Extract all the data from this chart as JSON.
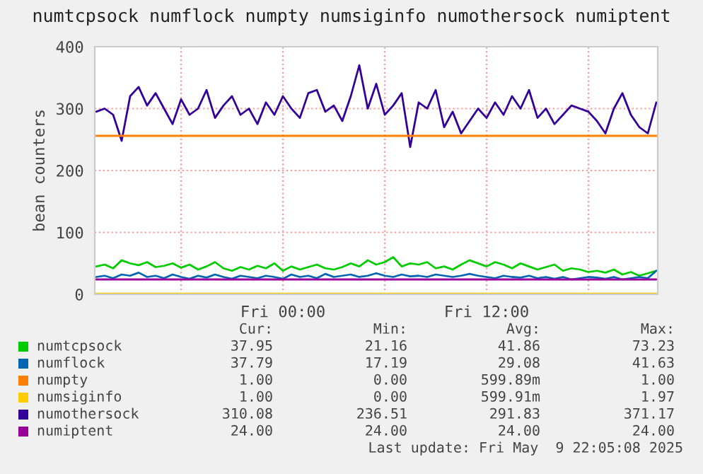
{
  "chart_data": {
    "type": "line",
    "title": "numtcpsock numflock numpty numsiginfo numothersock numiptent",
    "ylabel": "bean counters",
    "x": [
      "2025-05-08T13:00",
      "2025-05-08T13:30",
      "2025-05-08T14:00",
      "2025-05-08T14:30",
      "2025-05-08T15:00",
      "2025-05-08T15:30",
      "2025-05-08T16:00",
      "2025-05-08T16:30",
      "2025-05-08T17:00",
      "2025-05-08T17:30",
      "2025-05-08T18:00",
      "2025-05-08T18:30",
      "2025-05-08T19:00",
      "2025-05-08T19:30",
      "2025-05-08T20:00",
      "2025-05-08T20:30",
      "2025-05-08T21:00",
      "2025-05-08T21:30",
      "2025-05-08T22:00",
      "2025-05-08T22:30",
      "2025-05-08T23:00",
      "2025-05-08T23:30",
      "2025-05-09T00:00",
      "2025-05-09T00:30",
      "2025-05-09T01:00",
      "2025-05-09T01:30",
      "2025-05-09T02:00",
      "2025-05-09T02:30",
      "2025-05-09T03:00",
      "2025-05-09T03:30",
      "2025-05-09T04:00",
      "2025-05-09T04:30",
      "2025-05-09T05:00",
      "2025-05-09T05:30",
      "2025-05-09T06:00",
      "2025-05-09T06:30",
      "2025-05-09T07:00",
      "2025-05-09T07:30",
      "2025-05-09T08:00",
      "2025-05-09T08:30",
      "2025-05-09T09:00",
      "2025-05-09T09:30",
      "2025-05-09T10:00",
      "2025-05-09T10:30",
      "2025-05-09T11:00",
      "2025-05-09T11:30",
      "2025-05-09T12:00",
      "2025-05-09T12:30",
      "2025-05-09T13:00",
      "2025-05-09T13:30",
      "2025-05-09T14:00",
      "2025-05-09T14:30",
      "2025-05-09T15:00",
      "2025-05-09T15:30",
      "2025-05-09T16:00",
      "2025-05-09T16:30",
      "2025-05-09T17:00",
      "2025-05-09T17:30",
      "2025-05-09T18:00",
      "2025-05-09T18:30",
      "2025-05-09T19:00",
      "2025-05-09T19:30",
      "2025-05-09T20:00",
      "2025-05-09T20:30",
      "2025-05-09T21:00",
      "2025-05-09T21:30",
      "2025-05-09T22:00"
    ],
    "series": [
      {
        "name": "numtcpsock",
        "color": "#00cc00",
        "values": [
          45,
          48,
          42,
          55,
          50,
          47,
          52,
          44,
          46,
          50,
          43,
          48,
          40,
          45,
          52,
          42,
          38,
          44,
          40,
          46,
          42,
          50,
          38,
          45,
          40,
          44,
          48,
          42,
          40,
          44,
          50,
          45,
          55,
          48,
          52,
          60,
          45,
          50,
          48,
          52,
          42,
          45,
          40,
          48,
          55,
          50,
          45,
          52,
          48,
          42,
          50,
          45,
          40,
          44,
          48,
          38,
          42,
          40,
          36,
          38,
          35,
          40,
          32,
          36,
          30,
          34,
          38
        ]
      },
      {
        "name": "numflock",
        "color": "#0066b3",
        "values": [
          28,
          30,
          26,
          32,
          30,
          35,
          28,
          30,
          26,
          32,
          28,
          25,
          30,
          27,
          32,
          28,
          25,
          30,
          28,
          26,
          30,
          28,
          25,
          32,
          28,
          30,
          26,
          33,
          28,
          30,
          32,
          28,
          30,
          34,
          30,
          28,
          32,
          29,
          30,
          28,
          32,
          30,
          28,
          30,
          33,
          30,
          28,
          26,
          30,
          28,
          27,
          30,
          26,
          28,
          25,
          28,
          24,
          26,
          28,
          27,
          25,
          28,
          24,
          26,
          28,
          26,
          38
        ]
      },
      {
        "name": "numpty",
        "color": "#ff8000",
        "values": [
          null,
          null,
          null,
          null,
          null,
          null,
          null,
          null,
          null,
          null,
          null,
          null,
          null,
          null,
          null,
          null,
          null,
          null,
          null,
          null,
          null,
          null,
          null,
          null,
          null,
          null,
          null,
          null,
          null,
          null,
          null,
          null,
          null,
          null,
          null,
          null,
          null,
          null,
          null,
          null,
          null,
          null,
          null,
          null,
          null,
          null,
          null,
          null,
          null,
          null,
          null,
          null,
          null,
          null,
          null,
          null,
          null,
          null,
          null,
          null,
          null,
          null,
          null,
          null,
          null,
          null,
          null
        ]
      },
      {
        "name": "numsiginfo",
        "color": "#ffcc00",
        "values": [
          1,
          1,
          1,
          1,
          1,
          1,
          1,
          1,
          1,
          1,
          1,
          1,
          1,
          1,
          1,
          1,
          1,
          1,
          1,
          1,
          1,
          1,
          1,
          1,
          1,
          1,
          1,
          1,
          1,
          1,
          1,
          1,
          1,
          1,
          1,
          1,
          1,
          1,
          1,
          1,
          1,
          1,
          1,
          1,
          1,
          1,
          1,
          1,
          1,
          1,
          1,
          1,
          1,
          1,
          1,
          1,
          1,
          1,
          1,
          1,
          1,
          1,
          1,
          1,
          1,
          1,
          1
        ]
      },
      {
        "name": "numothersock",
        "color": "#330099",
        "values": [
          295,
          300,
          290,
          248,
          320,
          335,
          305,
          325,
          300,
          275,
          315,
          290,
          300,
          330,
          285,
          305,
          320,
          290,
          300,
          275,
          310,
          290,
          320,
          300,
          285,
          325,
          330,
          295,
          305,
          280,
          320,
          370,
          300,
          340,
          290,
          305,
          325,
          238,
          310,
          300,
          330,
          270,
          295,
          260,
          280,
          300,
          285,
          310,
          290,
          320,
          300,
          330,
          285,
          300,
          275,
          290,
          305,
          300,
          295,
          280,
          260,
          300,
          325,
          290,
          270,
          260,
          310
        ]
      },
      {
        "name": "numiptent",
        "color": "#990099",
        "values": [
          24,
          24,
          24,
          24,
          24,
          24,
          24,
          24,
          24,
          24,
          24,
          24,
          24,
          24,
          24,
          24,
          24,
          24,
          24,
          24,
          24,
          24,
          24,
          24,
          24,
          24,
          24,
          24,
          24,
          24,
          24,
          24,
          24,
          24,
          24,
          24,
          24,
          24,
          24,
          24,
          24,
          24,
          24,
          24,
          24,
          24,
          24,
          24,
          24,
          24,
          24,
          24,
          24,
          24,
          24,
          24,
          24,
          24,
          24,
          24,
          24,
          24,
          24,
          24,
          24,
          24,
          24
        ]
      }
    ],
    "ref_lines": [
      {
        "axis": "y",
        "value": 256,
        "color": "#ff8000"
      }
    ],
    "xlim": [
      "2025-05-08T12:55",
      "2025-05-09T22:05"
    ],
    "xticks": [
      {
        "value": "2025-05-08T18:00",
        "label": null
      },
      {
        "value": "2025-05-09T00:00",
        "label": "Fri 00:00"
      },
      {
        "value": "2025-05-09T06:00",
        "label": null
      },
      {
        "value": "2025-05-09T12:00",
        "label": "Fri 12:00"
      },
      {
        "value": "2025-05-09T18:00",
        "label": null
      }
    ],
    "ylim": [
      0,
      400
    ],
    "yticks": [
      0,
      100,
      200,
      300,
      400
    ],
    "grid": true,
    "legend": "bottom",
    "marker": "none",
    "line_style": "solid",
    "annotations": [
      "Cur:",
      "Min:",
      "Avg:",
      "Max:",
      "37.95",
      "21.16",
      "41.86",
      "73.23",
      "37.79",
      "17.19",
      "29.08",
      "41.63",
      "1.00",
      "0.00",
      "599.89m",
      "1.00",
      "1.00",
      "0.00",
      "599.91m",
      "1.97",
      "310.08",
      "236.51",
      "291.83",
      "371.17",
      "24.00",
      "24.00",
      "24.00",
      "24.00",
      "Last update: Fri May  9 22:05:08 2025"
    ]
  }
}
